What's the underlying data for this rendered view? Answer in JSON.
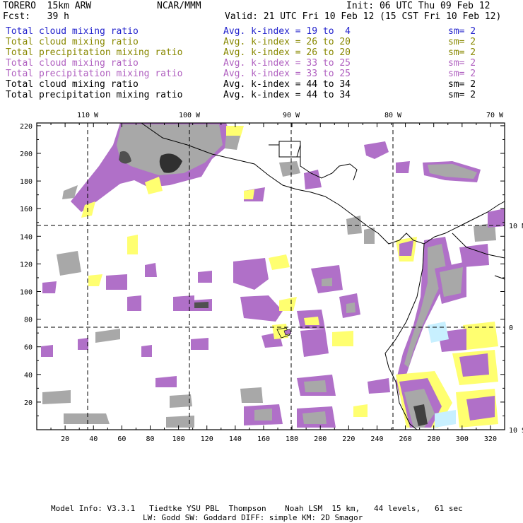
{
  "header": {
    "model": "TORERO  15km ARW",
    "center": "NCAR/MMM",
    "init": "Init: 06 UTC Thu 09 Feb 12",
    "fcst": "Fcst:   39 h",
    "valid": "Valid: 21 UTC Fri 10 Feb 12 (15 CST Fri 10 Feb 12)"
  },
  "legend": [
    {
      "field": "Total cloud mixing ratio",
      "kindex": "Avg. k-index = 19 to  4",
      "sm": "sm= 2",
      "color": "#2222cc"
    },
    {
      "field": "Total cloud mixing ratio",
      "kindex": "Avg. k-index = 26 to 20",
      "sm": "sm= 2",
      "color": "#888800"
    },
    {
      "field": "Total precipitation mixing ratio",
      "kindex": "Avg. k-index = 26 to 20",
      "sm": "sm= 2",
      "color": "#888800"
    },
    {
      "field": "Total cloud mixing ratio",
      "kindex": "Avg. k-index = 33 to 25",
      "sm": "sm= 2",
      "color": "#b060c0"
    },
    {
      "field": "Total precipitation mixing ratio",
      "kindex": "Avg. k-index = 33 to 25",
      "sm": "sm= 2",
      "color": "#b060c0"
    },
    {
      "field": "Total cloud mixing ratio",
      "kindex": "Avg. k-index = 44 to 34",
      "sm": "sm= 2",
      "color": "#000000"
    },
    {
      "field": "Total precipitation mixing ratio",
      "kindex": "Avg. k-index = 44 to 34",
      "sm": "sm= 2",
      "color": "#000000"
    }
  ],
  "map": {
    "lon_labels": [
      "110 W",
      "100 W",
      "90 W",
      "80 W",
      "70 W"
    ],
    "lat_labels": [
      "10 N",
      "0",
      "10 S"
    ],
    "x_ticks": [
      "20",
      "40",
      "60",
      "80",
      "100",
      "120",
      "140",
      "160",
      "180",
      "200",
      "220",
      "240",
      "260",
      "280",
      "300",
      "320"
    ],
    "y_ticks": [
      "20",
      "40",
      "60",
      "80",
      "100",
      "120",
      "140",
      "160",
      "180",
      "200",
      "220"
    ],
    "colors": {
      "purple": "#b070c8",
      "yellow": "#ffff70",
      "gray": "#a8a8a8",
      "darkgray": "#606060",
      "lightblue": "#c8f0ff"
    }
  },
  "footer": {
    "line1": "Model Info: V3.3.1   Tiedtke YSU PBL  Thompson    Noah LSM  15 km,   44 levels,   61 sec",
    "line2": "LW: Godd SW: Goddard DIFF: simple KM: 2D Smagor"
  }
}
